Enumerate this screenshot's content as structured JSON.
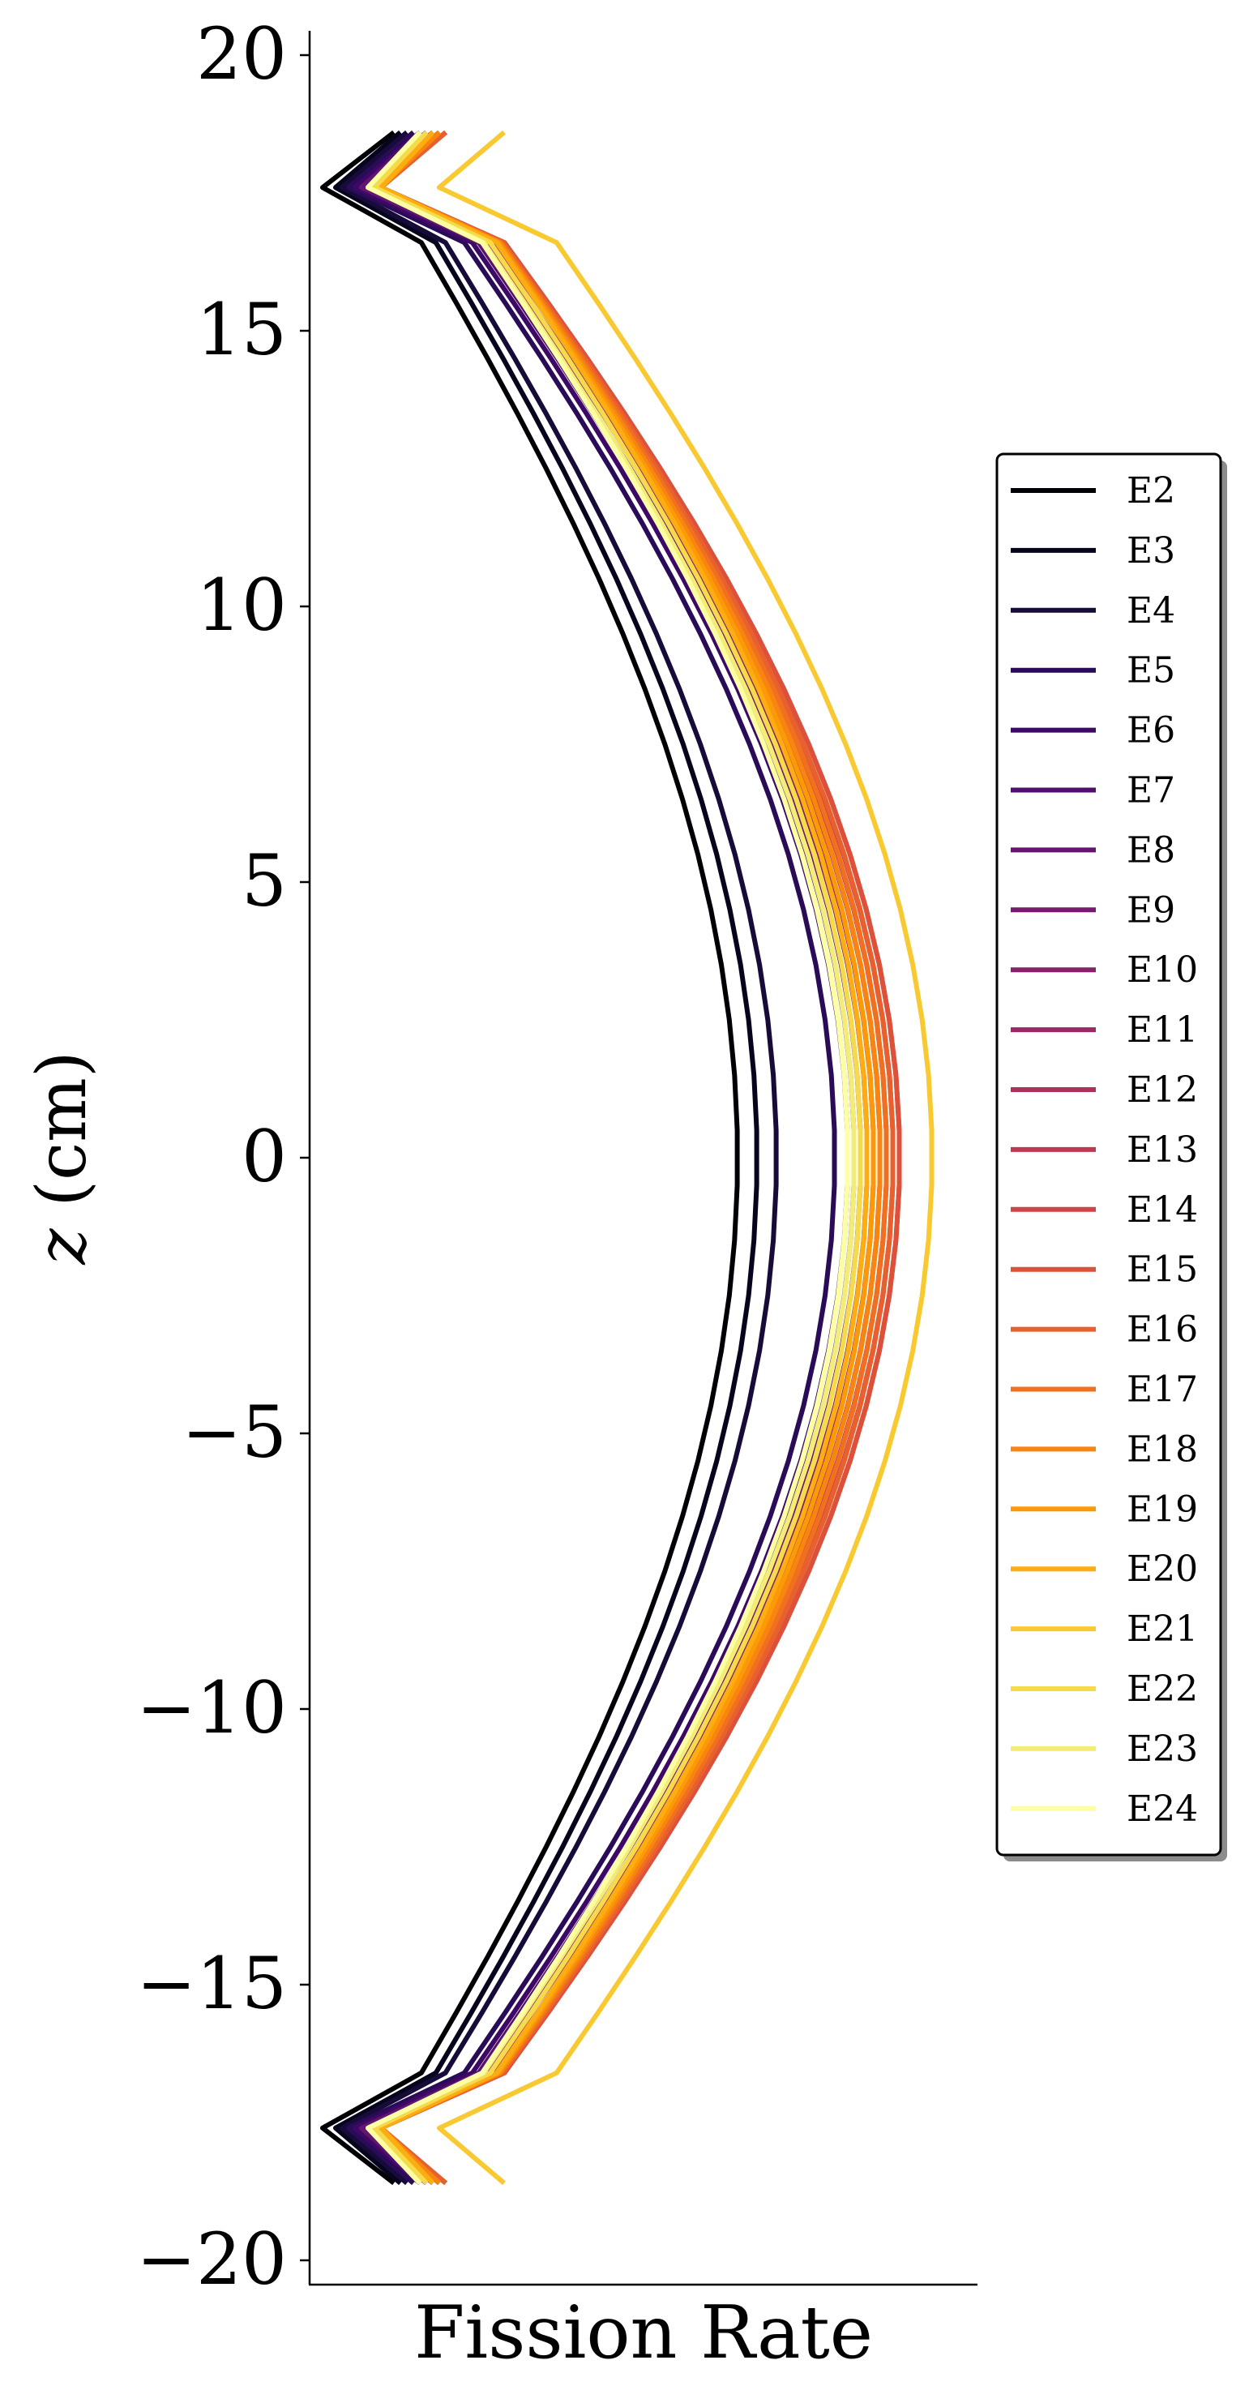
{
  "chart_data": {
    "type": "line",
    "xlabel": "Fission Rate",
    "ylabel": "z (cm)",
    "ylim": [
      -20.5,
      20.5
    ],
    "xlim": [
      0,
      1
    ],
    "yticks": [
      20,
      15,
      10,
      5,
      0,
      -5,
      -10,
      -15,
      -20
    ],
    "ytick_labels": [
      "20",
      "15",
      "10",
      "5",
      "0",
      "−5",
      "−10",
      "−15",
      "−20"
    ],
    "xticks_shown": false,
    "grid": false,
    "legend_placement": "right (outside plot)",
    "z": [
      18.6,
      17.6,
      16.6,
      15.5,
      14.5,
      13.5,
      12.5,
      11.5,
      10.5,
      9.5,
      8.5,
      7.5,
      6.5,
      5.5,
      4.5,
      3.5,
      2.5,
      1.5,
      0.5,
      -0.5,
      -1.5,
      -2.5,
      -3.5,
      -4.5,
      -5.5,
      -6.5,
      -7.5,
      -8.5,
      -9.5,
      -10.5,
      -11.5,
      -12.5,
      -13.5,
      -14.5,
      -15.5,
      -16.6,
      -17.6,
      -18.6
    ],
    "series": [
      {
        "name": "E2",
        "color": "#000004",
        "peak": 0.66,
        "end": 0.13,
        "lo": 0.02
      },
      {
        "name": "E3",
        "color": "#07051e",
        "peak": 0.69,
        "end": 0.14,
        "lo": 0.04
      },
      {
        "name": "E4",
        "color": "#160b39",
        "peak": 0.72,
        "end": 0.15,
        "lo": 0.05
      },
      {
        "name": "E5",
        "color": "#2a0b57",
        "peak": 0.81,
        "end": 0.16,
        "lo": 0.06
      },
      {
        "name": "E6",
        "color": "#3e0966",
        "peak": 0.83,
        "end": 0.17,
        "lo": 0.07
      },
      {
        "name": "E7",
        "color": "#510e6c",
        "peak": 0.84,
        "end": 0.17,
        "lo": 0.08
      },
      {
        "name": "E8",
        "color": "#64156e",
        "peak": 0.85,
        "end": 0.18,
        "lo": 0.08
      },
      {
        "name": "E9",
        "color": "#771c6d",
        "peak": 0.86,
        "end": 0.18,
        "lo": 0.09
      },
      {
        "name": "E10",
        "color": "#89226a",
        "peak": 0.87,
        "end": 0.19,
        "lo": 0.09
      },
      {
        "name": "E11",
        "color": "#9c2964",
        "peak": 0.88,
        "end": 0.19,
        "lo": 0.1
      },
      {
        "name": "E12",
        "color": "#ae305c",
        "peak": 0.89,
        "end": 0.2,
        "lo": 0.1
      },
      {
        "name": "E13",
        "color": "#bf3952",
        "peak": 0.9,
        "end": 0.2,
        "lo": 0.1
      },
      {
        "name": "E14",
        "color": "#cf4446",
        "peak": 0.91,
        "end": 0.21,
        "lo": 0.11
      },
      {
        "name": "E15",
        "color": "#dd513a",
        "peak": 0.91,
        "end": 0.21,
        "lo": 0.11
      },
      {
        "name": "E16",
        "color": "#e8602d",
        "peak": 0.9,
        "end": 0.21,
        "lo": 0.11
      },
      {
        "name": "E17",
        "color": "#f17020",
        "peak": 0.89,
        "end": 0.2,
        "lo": 0.11
      },
      {
        "name": "E18",
        "color": "#f8850f",
        "peak": 0.88,
        "end": 0.2,
        "lo": 0.11
      },
      {
        "name": "E19",
        "color": "#fb9906",
        "peak": 0.87,
        "end": 0.19,
        "lo": 0.11
      },
      {
        "name": "E20",
        "color": "#fcad12",
        "peak": 0.86,
        "end": 0.19,
        "lo": 0.11
      },
      {
        "name": "E21",
        "color": "#f9c932",
        "peak": 0.96,
        "end": 0.3,
        "lo": 0.2
      },
      {
        "name": "E22",
        "color": "#f5db4c",
        "peak": 0.85,
        "end": 0.18,
        "lo": 0.1
      },
      {
        "name": "E23",
        "color": "#f3ed77",
        "peak": 0.84,
        "end": 0.17,
        "lo": 0.09
      },
      {
        "name": "E24",
        "color": "#fcffa4",
        "peak": 0.83,
        "end": 0.17,
        "lo": 0.09
      }
    ]
  }
}
